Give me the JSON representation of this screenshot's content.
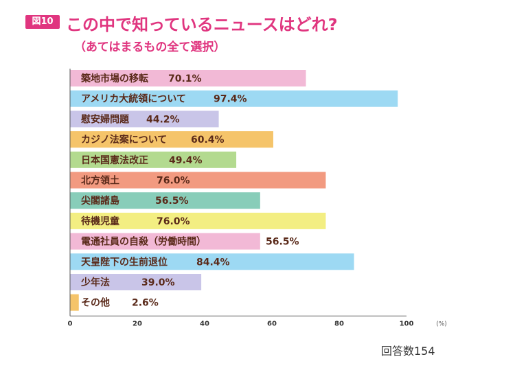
{
  "figure_badge": "図10",
  "title": "この中で知っているニュースはどれ?",
  "subtitle": "（あてはまるもの全て選択）",
  "footer": "回答数154",
  "chart_data": {
    "type": "bar",
    "orientation": "horizontal",
    "categories": [
      "築地市場の移転",
      "アメリカ大統領について",
      "慰安婦問題",
      "カジノ法案について",
      "日本国憲法改正",
      "北方領土",
      "尖閣諸島",
      "待機児童",
      "電通社員の自殺（労働時間）",
      "天皇陛下の生前退位",
      "少年法",
      "その他"
    ],
    "values": [
      70.1,
      97.4,
      44.2,
      60.4,
      49.4,
      76.0,
      56.5,
      76.0,
      56.5,
      84.4,
      39.0,
      2.6
    ],
    "value_labels": [
      "70.1%",
      "97.4%",
      "44.2%",
      "60.4%",
      "49.4%",
      "76.0%",
      "56.5%",
      "76.0%",
      "56.5%",
      "84.4%",
      "39.0%",
      "2.6%"
    ],
    "colors": [
      "#f2b9d6",
      "#9dd9f3",
      "#c9c5e8",
      "#f5c46a",
      "#b3da8f",
      "#f29a80",
      "#88cdb9",
      "#f3ee82",
      "#f2b9d6",
      "#9dd9f3",
      "#c9c5e8",
      "#f5c46a"
    ],
    "xticks": [
      "0",
      "20",
      "40",
      "60",
      "80",
      "100"
    ],
    "xlim": [
      0,
      100
    ],
    "unit": "(%)"
  }
}
